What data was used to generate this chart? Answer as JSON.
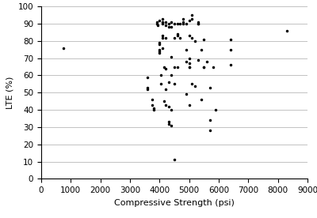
{
  "title": "",
  "xlabel": "Compressive Strength (psi)",
  "ylabel": "LTE (%)",
  "xlim": [
    0,
    9000
  ],
  "ylim": [
    0,
    100
  ],
  "xticks": [
    0,
    1000,
    2000,
    3000,
    4000,
    5000,
    6000,
    7000,
    8000,
    9000
  ],
  "yticks": [
    0,
    10,
    20,
    30,
    40,
    50,
    60,
    70,
    80,
    90,
    100
  ],
  "marker": ".",
  "marker_color": "black",
  "marker_size": 3,
  "points": [
    [
      750,
      76
    ],
    [
      3600,
      59
    ],
    [
      3600,
      53
    ],
    [
      3600,
      52
    ],
    [
      3750,
      46
    ],
    [
      3750,
      43
    ],
    [
      3800,
      41
    ],
    [
      3800,
      40
    ],
    [
      3900,
      91
    ],
    [
      3900,
      90
    ],
    [
      3950,
      89
    ],
    [
      4000,
      92
    ],
    [
      4000,
      79
    ],
    [
      4000,
      78
    ],
    [
      4000,
      75
    ],
    [
      4000,
      74
    ],
    [
      4000,
      73
    ],
    [
      4050,
      60
    ],
    [
      4050,
      55
    ],
    [
      4100,
      93
    ],
    [
      4100,
      91
    ],
    [
      4100,
      91
    ],
    [
      4100,
      90
    ],
    [
      4100,
      83
    ],
    [
      4100,
      82
    ],
    [
      4100,
      76
    ],
    [
      4150,
      65
    ],
    [
      4150,
      45
    ],
    [
      4200,
      91
    ],
    [
      4200,
      89
    ],
    [
      4200,
      82
    ],
    [
      4200,
      64
    ],
    [
      4200,
      52
    ],
    [
      4200,
      43
    ],
    [
      4300,
      90
    ],
    [
      4300,
      88
    ],
    [
      4300,
      56
    ],
    [
      4300,
      42
    ],
    [
      4300,
      33
    ],
    [
      4300,
      32
    ],
    [
      4400,
      91
    ],
    [
      4400,
      88
    ],
    [
      4400,
      71
    ],
    [
      4400,
      60
    ],
    [
      4400,
      40
    ],
    [
      4400,
      31
    ],
    [
      4500,
      90
    ],
    [
      4500,
      82
    ],
    [
      4500,
      65
    ],
    [
      4500,
      55
    ],
    [
      4500,
      11
    ],
    [
      4600,
      90
    ],
    [
      4600,
      84
    ],
    [
      4600,
      83
    ],
    [
      4600,
      65
    ],
    [
      4700,
      90
    ],
    [
      4700,
      82
    ],
    [
      4800,
      93
    ],
    [
      4800,
      91
    ],
    [
      4800,
      90
    ],
    [
      4900,
      90
    ],
    [
      4900,
      75
    ],
    [
      4900,
      68
    ],
    [
      4900,
      49
    ],
    [
      5000,
      92
    ],
    [
      5000,
      83
    ],
    [
      5000,
      70
    ],
    [
      5000,
      67
    ],
    [
      5000,
      65
    ],
    [
      5000,
      65
    ],
    [
      5000,
      43
    ],
    [
      5100,
      95
    ],
    [
      5100,
      93
    ],
    [
      5100,
      82
    ],
    [
      5100,
      55
    ],
    [
      5200,
      80
    ],
    [
      5200,
      54
    ],
    [
      5300,
      91
    ],
    [
      5300,
      90
    ],
    [
      5300,
      90
    ],
    [
      5300,
      69
    ],
    [
      5400,
      75
    ],
    [
      5400,
      46
    ],
    [
      5500,
      81
    ],
    [
      5500,
      65
    ],
    [
      5500,
      65
    ],
    [
      5600,
      68
    ],
    [
      5700,
      53
    ],
    [
      5700,
      34
    ],
    [
      5700,
      28
    ],
    [
      5800,
      65
    ],
    [
      5900,
      40
    ],
    [
      6400,
      81
    ],
    [
      6400,
      75
    ],
    [
      6400,
      66
    ],
    [
      8300,
      86
    ]
  ],
  "background_color": "#ffffff",
  "grid_color": "#aaaaaa",
  "xlabel_fontsize": 8,
  "ylabel_fontsize": 8,
  "tick_fontsize": 7.5
}
